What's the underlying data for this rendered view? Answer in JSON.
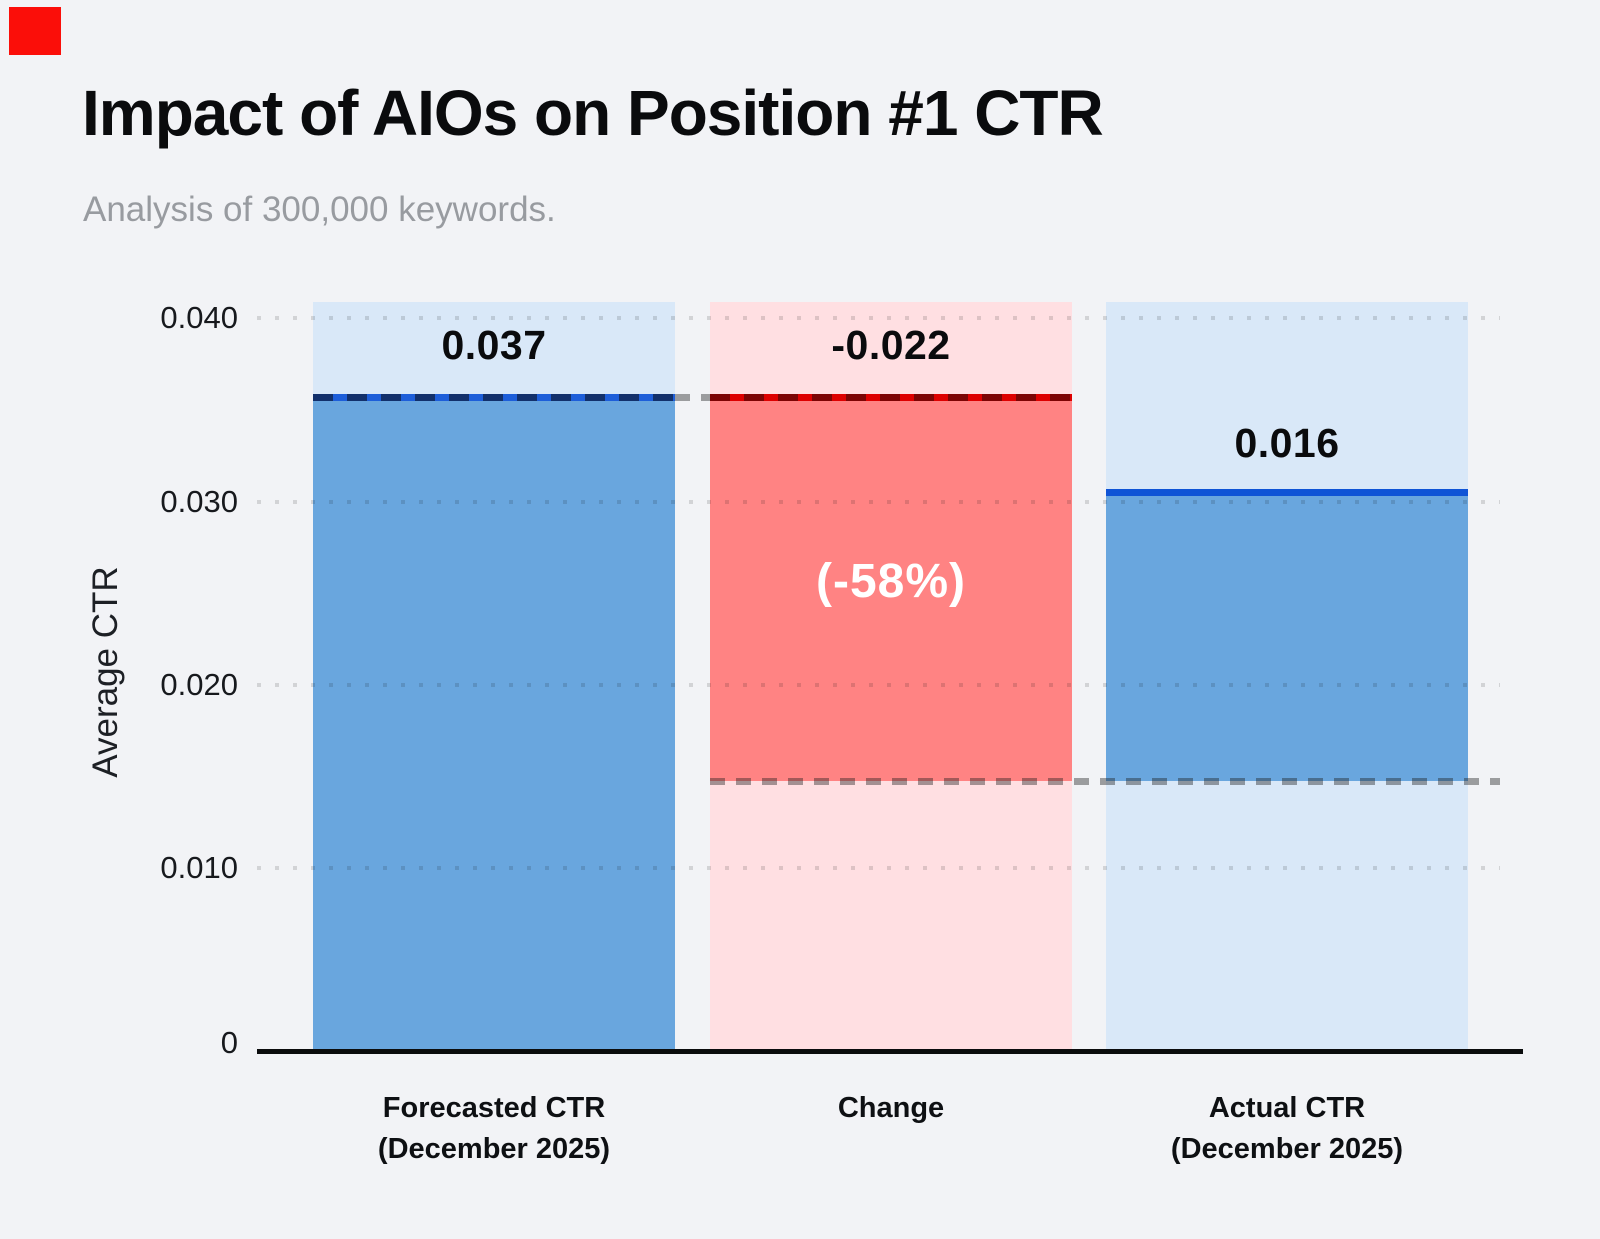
{
  "logo": {
    "color": "#fb0e09"
  },
  "header": {
    "title": "Impact of AIOs on Position #1 CTR",
    "subtitle": "Analysis of 300,000 keywords."
  },
  "chart_data": {
    "type": "bar",
    "subtype": "waterfall",
    "title": "Impact of AIOs on Position #1 CTR",
    "subtitle": "Analysis of 300,000 keywords.",
    "ylabel": "Average CTR",
    "xlabel": "",
    "ylim": [
      0,
      0.0415
    ],
    "grid": "horizontal-dotted",
    "legend": "none",
    "yticks": [
      {
        "value": 0.04,
        "label": "0.040"
      },
      {
        "value": 0.03,
        "label": "0.030"
      },
      {
        "value": 0.02,
        "label": "0.020"
      },
      {
        "value": 0.01,
        "label": "0.010"
      },
      {
        "value": 0,
        "label": "0"
      }
    ],
    "categories": [
      "Forecasted CTR (December 2025)",
      "Change",
      "Actual CTR (December 2025)"
    ],
    "values": [
      0.037,
      -0.022,
      0.016
    ],
    "dashed_level_value": 0.015,
    "bars": [
      {
        "name": "forecasted-ctr",
        "category_line1": "Forecasted CTR",
        "category_line2": "(December 2025)",
        "value": 0.037,
        "value_label": "0.037",
        "segment_from": 0,
        "segment_to": 0.0365,
        "top_line_style": "dashed",
        "fill_color": "#69a6de",
        "background_fill_color": "#d9e8f8",
        "line_color": "#1d5ed9",
        "line_dash_color": "#12306b"
      },
      {
        "name": "change",
        "category_line1": "Change",
        "category_line2": "",
        "value": -0.022,
        "value_label": "-0.022",
        "percent_label": "(-58%)",
        "segment_from": 0.015,
        "segment_to": 0.0365,
        "top_line_style": "dashed",
        "fill_color": "#ff8383",
        "background_fill_color": "#ffdfe2",
        "line_color": "#dd0000",
        "line_dash_color": "#7c0404"
      },
      {
        "name": "actual-ctr",
        "category_line1": "Actual CTR",
        "category_line2": "(December 2025)",
        "value": 0.016,
        "value_label": "0.016",
        "segment_from": 0.015,
        "segment_to": 0.031,
        "top_line_style": "solid",
        "fill_color": "#69a6de",
        "background_fill_color": "#d9e8f8",
        "line_color": "#0f54d6"
      }
    ]
  }
}
